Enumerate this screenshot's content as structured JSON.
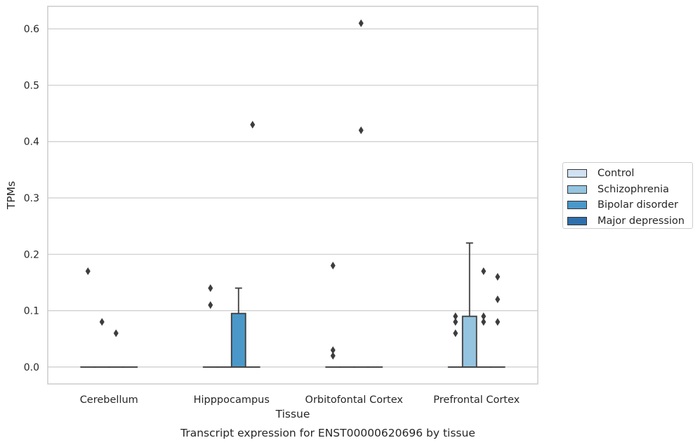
{
  "chart_data": {
    "type": "box",
    "title": "",
    "xlabel": "Tissue",
    "ylabel": "TPMs",
    "caption": "Transcript expression for ENST00000620696 by tissue",
    "ylim": [
      -0.03,
      0.64
    ],
    "yticks": [
      0.0,
      0.1,
      0.2,
      0.3,
      0.4,
      0.5,
      0.6
    ],
    "ytick_labels": [
      "0.0",
      "0.1",
      "0.2",
      "0.3",
      "0.4",
      "0.5",
      "0.6"
    ],
    "grid": "horizontal",
    "legend_position": "right",
    "categories": [
      "Cerebellum",
      "Hipppocampus",
      "Orbitofontal Cortex",
      "Prefrontal Cortex"
    ],
    "series": [
      {
        "name": "Control",
        "color": "#d0e1f2",
        "boxes": [
          {
            "q1": 0,
            "median": 0,
            "q3": 0,
            "whisker_low": 0,
            "whisker_high": 0,
            "outliers": [
              0.17
            ]
          },
          {
            "q1": 0,
            "median": 0,
            "q3": 0,
            "whisker_low": 0,
            "whisker_high": 0,
            "outliers": [
              0.14,
              0.11
            ]
          },
          {
            "q1": 0,
            "median": 0,
            "q3": 0,
            "whisker_low": 0,
            "whisker_high": 0,
            "outliers": [
              0.18,
              0.03,
              0.02
            ]
          },
          {
            "q1": 0,
            "median": 0,
            "q3": 0,
            "whisker_low": 0,
            "whisker_high": 0,
            "outliers": [
              0.09,
              0.08,
              0.06
            ]
          }
        ]
      },
      {
        "name": "Schizophrenia",
        "color": "#94c4df",
        "boxes": [
          {
            "q1": 0,
            "median": 0,
            "q3": 0,
            "whisker_low": 0,
            "whisker_high": 0,
            "outliers": [
              0.08
            ]
          },
          {
            "q1": 0,
            "median": 0,
            "q3": 0,
            "whisker_low": 0,
            "whisker_high": 0,
            "outliers": []
          },
          {
            "q1": 0,
            "median": 0,
            "q3": 0,
            "whisker_low": 0,
            "whisker_high": 0,
            "outliers": []
          },
          {
            "q1": 0,
            "median": 0,
            "q3": 0.09,
            "whisker_low": 0,
            "whisker_high": 0.22,
            "outliers": []
          }
        ]
      },
      {
        "name": "Bipolar disorder",
        "color": "#4a98c9",
        "boxes": [
          {
            "q1": 0,
            "median": 0,
            "q3": 0,
            "whisker_low": 0,
            "whisker_high": 0,
            "outliers": [
              0.06
            ]
          },
          {
            "q1": 0,
            "median": 0,
            "q3": 0.095,
            "whisker_low": 0,
            "whisker_high": 0.14,
            "outliers": []
          },
          {
            "q1": 0,
            "median": 0,
            "q3": 0,
            "whisker_low": 0,
            "whisker_high": 0,
            "outliers": [
              0.61,
              0.42
            ]
          },
          {
            "q1": 0,
            "median": 0,
            "q3": 0,
            "whisker_low": 0,
            "whisker_high": 0,
            "outliers": [
              0.17,
              0.09,
              0.08
            ]
          }
        ]
      },
      {
        "name": "Major depression",
        "color": "#2e6fac",
        "boxes": [
          {
            "q1": 0,
            "median": 0,
            "q3": 0,
            "whisker_low": 0,
            "whisker_high": 0,
            "outliers": []
          },
          {
            "q1": 0,
            "median": 0,
            "q3": 0,
            "whisker_low": 0,
            "whisker_high": 0,
            "outliers": [
              0.43
            ]
          },
          {
            "q1": 0,
            "median": 0,
            "q3": 0,
            "whisker_low": 0,
            "whisker_high": 0,
            "outliers": []
          },
          {
            "q1": 0,
            "median": 0,
            "q3": 0,
            "whisker_low": 0,
            "whisker_high": 0,
            "outliers": [
              0.16,
              0.12,
              0.08
            ]
          }
        ]
      }
    ]
  }
}
